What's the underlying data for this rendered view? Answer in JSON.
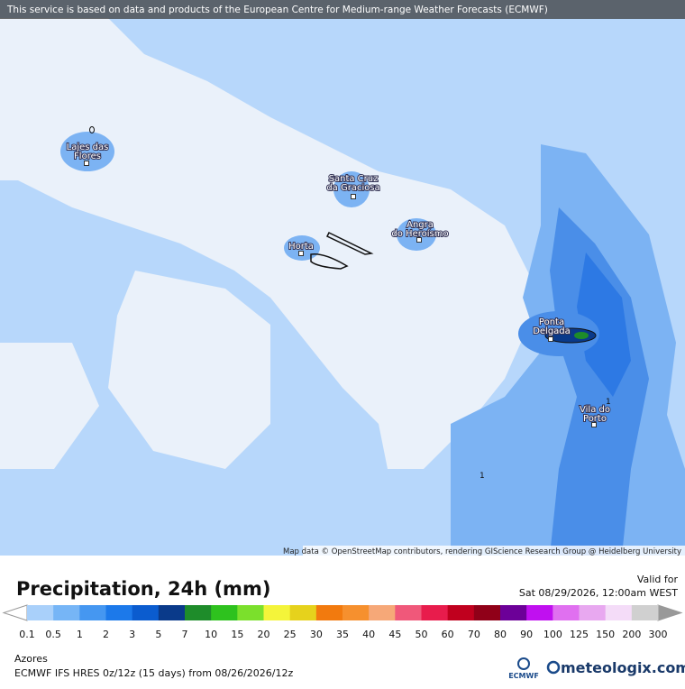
{
  "header": {
    "notice": "This service is based on data and products of the European Centre for Medium-range Weather Forecasts (ECMWF)"
  },
  "map": {
    "attribution": "Map data © OpenStreetMap contributors, rendering GIScience Research Group @ Heidelberg University",
    "places": [
      {
        "lines": [
          "Lajes das",
          "Flores"
        ]
      },
      {
        "lines": [
          "Santa Cruz",
          "da Graciosa"
        ]
      },
      {
        "lines": [
          "Angra",
          "do Heroísmo"
        ]
      },
      {
        "lines": [
          "Horta"
        ]
      },
      {
        "lines": [
          "Ponta",
          "Delgada"
        ]
      },
      {
        "lines": [
          "Vila do",
          "Porto"
        ]
      }
    ],
    "contour_labels": [
      "1",
      "1"
    ]
  },
  "legend": {
    "title": "Precipitation, 24h (mm)",
    "valid_label": "Valid for",
    "valid_time": "Sat 08/29/2026, 12:00am WEST",
    "values": [
      0.1,
      0.5,
      1,
      2,
      3,
      5,
      7,
      10,
      15,
      20,
      25,
      30,
      35,
      40,
      45,
      50,
      60,
      70,
      80,
      90,
      100,
      125,
      150,
      200,
      300
    ],
    "colors": [
      "#a9d0fa",
      "#76b5f6",
      "#4597f1",
      "#1c79ea",
      "#0b5ccf",
      "#0a3a8a",
      "#1e8c2a",
      "#2ec21e",
      "#7be02c",
      "#f4f43a",
      "#e6d21c",
      "#f27a0e",
      "#f6902e",
      "#f6a878",
      "#f0587a",
      "#e81c4c",
      "#c0001e",
      "#900018",
      "#6c0098",
      "#c010f0",
      "#e070f0",
      "#e8a8f0",
      "#f4dcf8",
      "#d0d0d0"
    ]
  },
  "footer": {
    "region": "Azores",
    "model": "ECMWF IFS HRES 0z/12z (15 days) from  08/26/2026/12z",
    "ecmwf": "ECMWF",
    "brand": "meteologix.com"
  }
}
